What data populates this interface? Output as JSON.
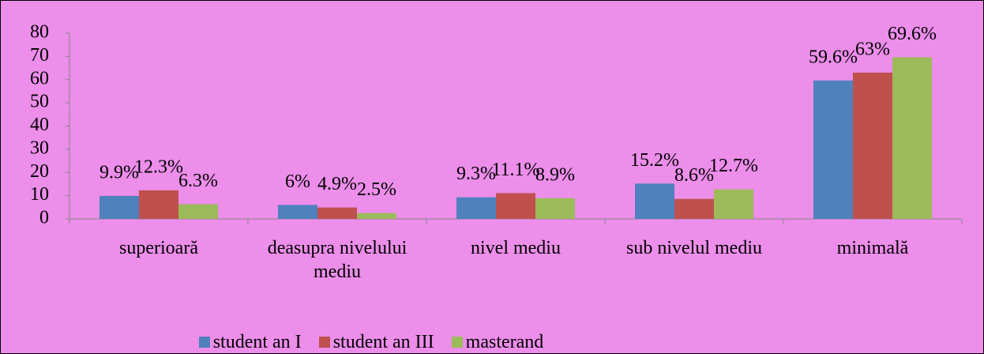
{
  "chart_data": {
    "type": "bar",
    "categories": [
      "superioară",
      "deasupra nivelului mediu",
      "nivel mediu",
      "sub nivelul mediu",
      "minimală"
    ],
    "series": [
      {
        "name": "student an I",
        "color": "#4f81bd",
        "values": [
          9.9,
          6,
          9.3,
          15.2,
          59.6
        ],
        "value_labels": [
          "9.9%",
          "6%",
          "9.3%",
          "15.2%",
          "59.6%"
        ]
      },
      {
        "name": "student an III",
        "color": "#c0504d",
        "values": [
          12.3,
          4.9,
          11.1,
          8.6,
          63
        ],
        "value_labels": [
          "12.3%",
          "4.9%",
          "11.1%",
          "8.6%",
          "63%"
        ]
      },
      {
        "name": "masterand",
        "color": "#9bbb59",
        "values": [
          6.3,
          2.5,
          8.9,
          12.7,
          69.6
        ],
        "value_labels": [
          "6.3%",
          "2.5%",
          "8.9%",
          "12.7%",
          "69.6%"
        ]
      }
    ],
    "ylim": [
      0,
      80
    ],
    "yticks": [
      0,
      10,
      20,
      30,
      40,
      50,
      60,
      70,
      80
    ],
    "grid": false,
    "legend": "bottom"
  }
}
